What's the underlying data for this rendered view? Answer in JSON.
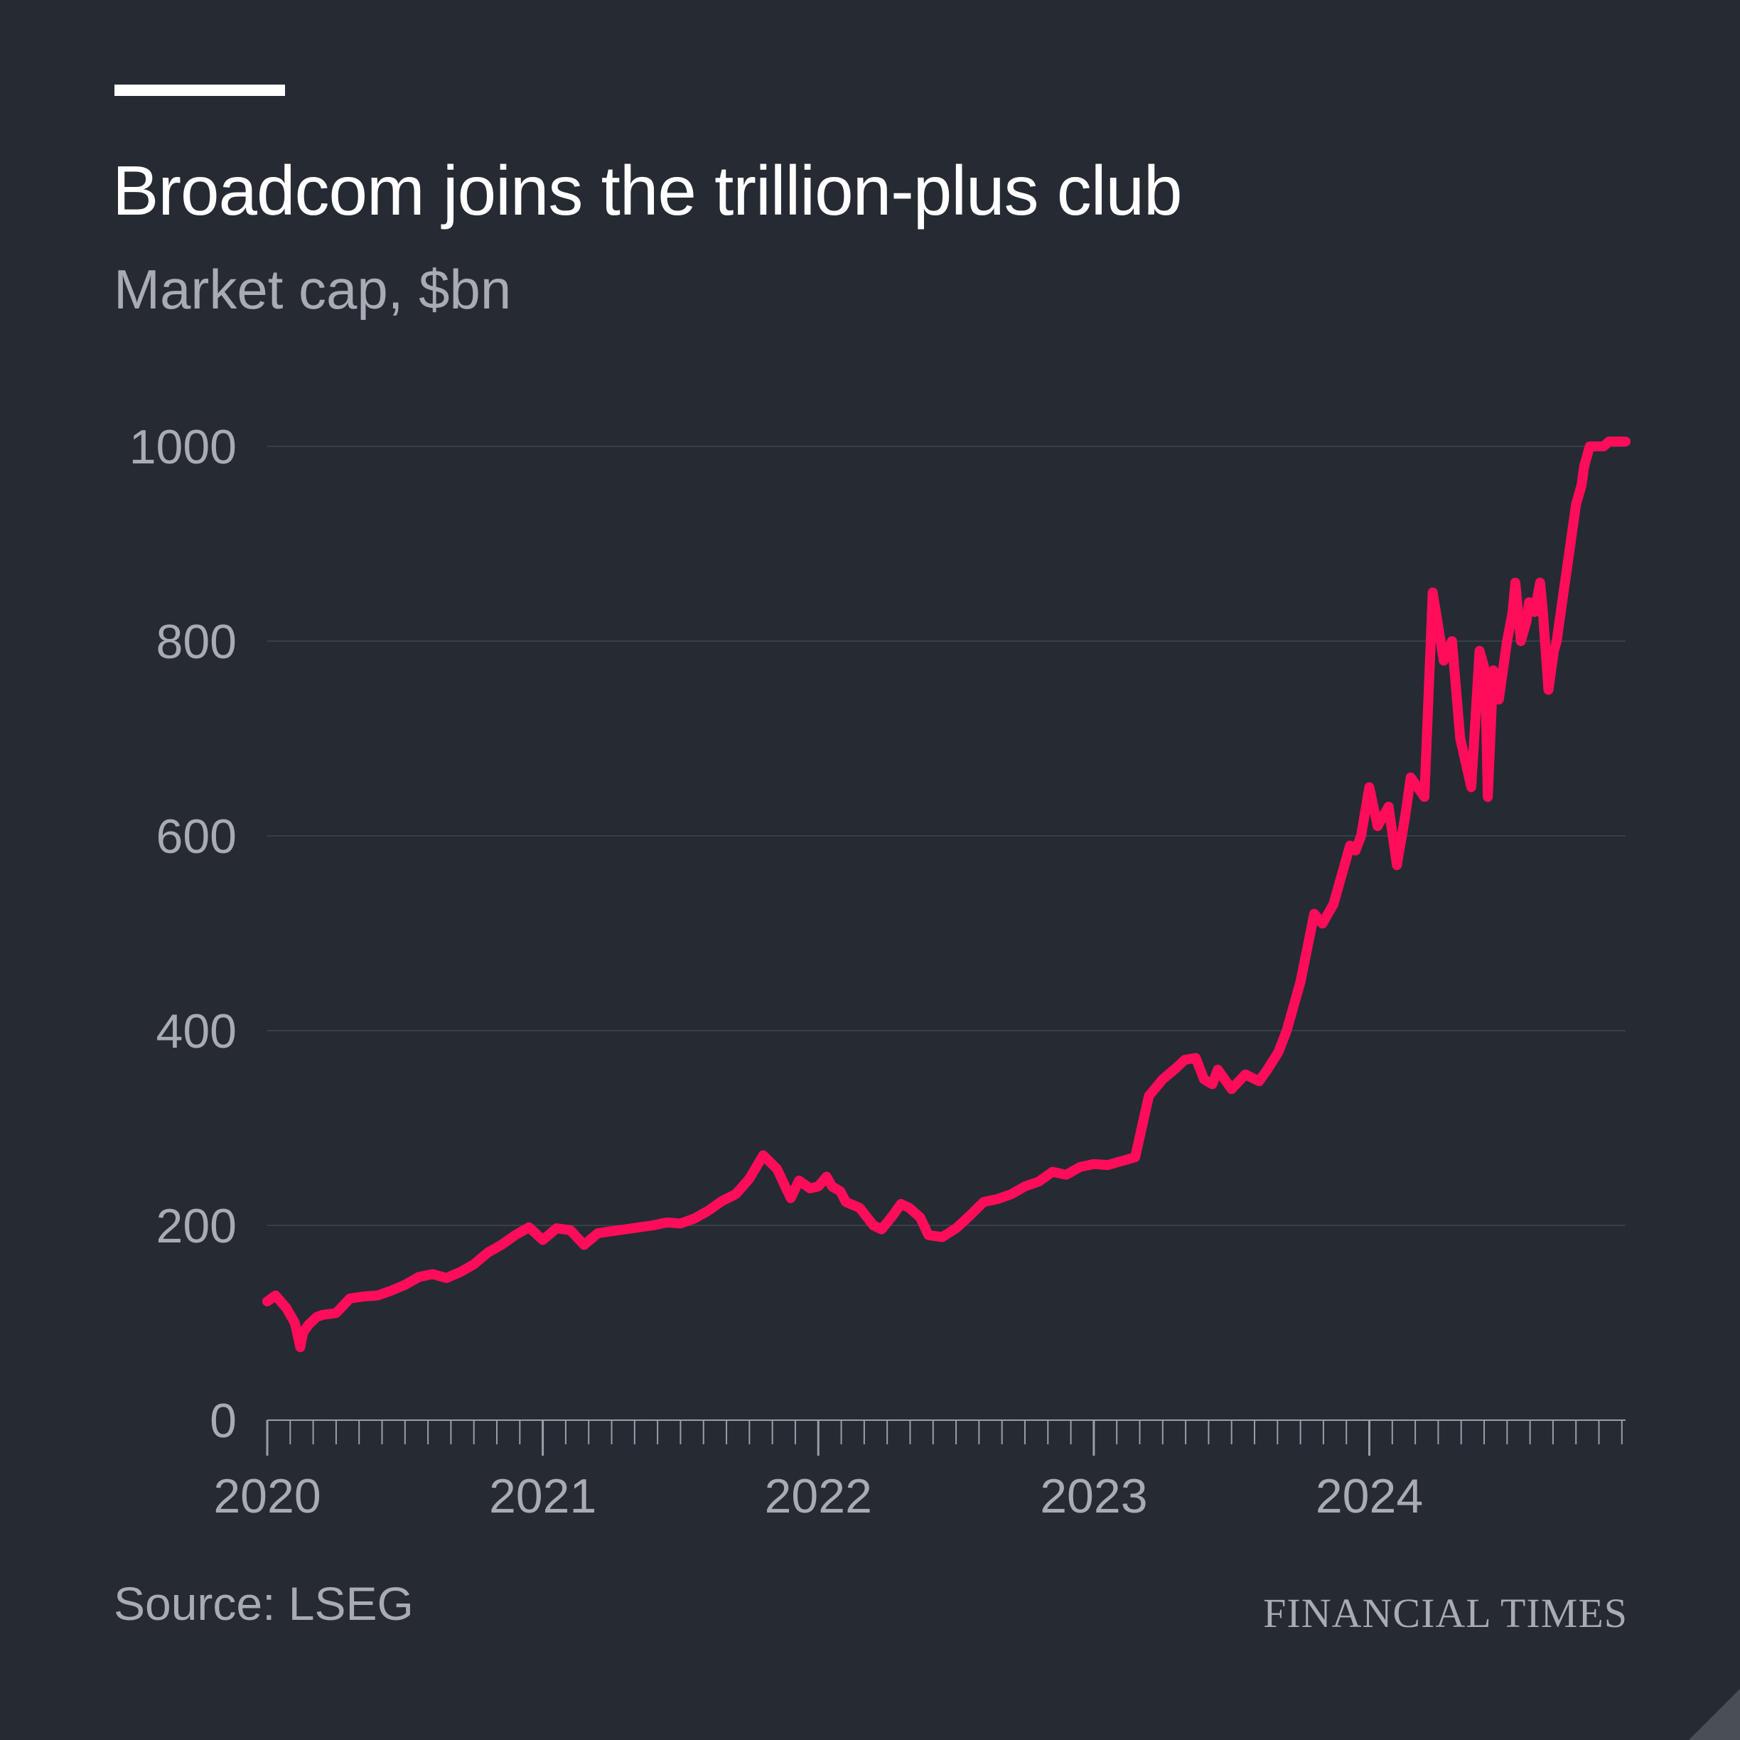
{
  "colors": {
    "background": "#262a33",
    "line": "#ff0d5a",
    "text_primary": "#ffffff",
    "text_secondary": "#a8abb1",
    "gridline": "#3a3e47"
  },
  "footer": {
    "source": "Source: LSEG",
    "brand": "FINANCIAL TIMES"
  },
  "chart_data": {
    "type": "line",
    "title": "Broadcom joins the trillion-plus club",
    "subtitle": "Market cap, $bn",
    "xlabel": "",
    "ylabel": "",
    "xlim": [
      2020.0,
      2024.93
    ],
    "ylim": [
      0,
      1000
    ],
    "yticks": [
      0,
      200,
      400,
      600,
      800,
      1000
    ],
    "xticks": [
      "2020",
      "2021",
      "2022",
      "2023",
      "2024"
    ],
    "grid": true,
    "series": [
      {
        "x": [
          2020.0,
          2020.03,
          2020.07,
          2020.1,
          2020.12,
          2020.13,
          2020.15,
          2020.18,
          2020.2,
          2020.25,
          2020.3,
          2020.35,
          2020.4,
          2020.45,
          2020.5,
          2020.55,
          2020.6,
          2020.65,
          2020.7,
          2020.75,
          2020.8,
          2020.85,
          2020.9,
          2020.95,
          2021.0,
          2021.05,
          2021.1,
          2021.15,
          2021.2,
          2021.25,
          2021.3,
          2021.35,
          2021.4,
          2021.45,
          2021.5,
          2021.55,
          2021.6,
          2021.65,
          2021.7,
          2021.75,
          2021.8,
          2021.85,
          2021.9,
          2021.93,
          2021.97,
          2022.0,
          2022.03,
          2022.05,
          2022.08,
          2022.1,
          2022.15,
          2022.2,
          2022.23,
          2022.27,
          2022.3,
          2022.33,
          2022.37,
          2022.4,
          2022.45,
          2022.5,
          2022.55,
          2022.6,
          2022.65,
          2022.7,
          2022.75,
          2022.8,
          2022.85,
          2022.9,
          2022.95,
          2023.0,
          2023.05,
          2023.1,
          2023.15,
          2023.2,
          2023.25,
          2023.3,
          2023.33,
          2023.37,
          2023.4,
          2023.43,
          2023.45,
          2023.5,
          2023.55,
          2023.6,
          2023.63,
          2023.67,
          2023.7,
          2023.75,
          2023.8,
          2023.83,
          2023.87,
          2023.9,
          2023.92,
          2023.93,
          2023.95,
          2023.97,
          2024.0,
          2024.03,
          2024.05,
          2024.07,
          2024.1,
          2024.13,
          2024.15,
          2024.2,
          2024.23,
          2024.27,
          2024.3,
          2024.33,
          2024.37,
          2024.4,
          2024.42,
          2024.43,
          2024.45,
          2024.47,
          2024.5,
          2024.52,
          2024.53,
          2024.55,
          2024.57,
          2024.58,
          2024.6,
          2024.62,
          2024.63,
          2024.65,
          2024.67,
          2024.68,
          2024.7,
          2024.72,
          2024.73,
          2024.75,
          2024.77,
          2024.78,
          2024.8,
          2024.82,
          2024.83,
          2024.85,
          2024.87,
          2024.88,
          2024.9,
          2024.92,
          2024.93
        ],
        "values": [
          122,
          128,
          115,
          100,
          75,
          90,
          98,
          106,
          108,
          110,
          125,
          127,
          128,
          133,
          139,
          147,
          150,
          146,
          152,
          160,
          172,
          180,
          190,
          198,
          185,
          197,
          195,
          180,
          192,
          194,
          196,
          198,
          200,
          203,
          202,
          207,
          215,
          225,
          232,
          248,
          272,
          258,
          228,
          246,
          238,
          240,
          250,
          240,
          235,
          224,
          218,
          200,
          196,
          210,
          222,
          218,
          208,
          190,
          188,
          197,
          210,
          224,
          227,
          232,
          240,
          245,
          255,
          252,
          260,
          263,
          262,
          266,
          270,
          333,
          350,
          362,
          370,
          372,
          350,
          345,
          360,
          340,
          355,
          348,
          360,
          378,
          400,
          450,
          520,
          510,
          530,
          560,
          580,
          590,
          585,
          600,
          650,
          610,
          620,
          630,
          570,
          620,
          660,
          640,
          850,
          780,
          800,
          700,
          650,
          790,
          770,
          640,
          770,
          740,
          800,
          830,
          860,
          800,
          820,
          840,
          830,
          860,
          830,
          750,
          790,
          800,
          840,
          880,
          900,
          940,
          960,
          980,
          1000,
          1000,
          1000,
          1000,
          1005,
          1005,
          1005,
          1005,
          1005
        ]
      }
    ]
  }
}
